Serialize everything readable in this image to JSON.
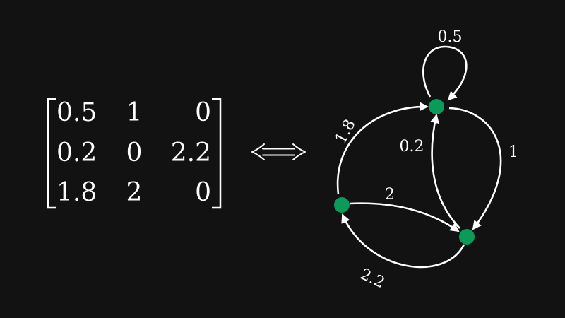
{
  "matrix": {
    "rows": [
      [
        "0.5",
        "1",
        "0"
      ],
      [
        "0.2",
        "0",
        "2.2"
      ],
      [
        "1.8",
        "2",
        "0"
      ]
    ]
  },
  "equivalence_symbol": "⟺",
  "graph": {
    "node_color": "#0a9a5a",
    "edge_color": "#ffffff",
    "background": "#121212",
    "nodes": [
      "1",
      "2",
      "3"
    ],
    "edges": [
      {
        "from": "1",
        "to": "1",
        "weight": "0.5"
      },
      {
        "from": "1",
        "to": "2",
        "weight": "1"
      },
      {
        "from": "2",
        "to": "1",
        "weight": "0.2"
      },
      {
        "from": "2",
        "to": "3",
        "weight": "2.2"
      },
      {
        "from": "3",
        "to": "1",
        "weight": "1.8"
      },
      {
        "from": "3",
        "to": "2",
        "weight": "2"
      }
    ]
  }
}
